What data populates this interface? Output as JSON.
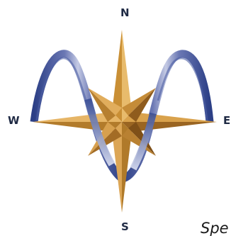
{
  "compass": {
    "north": "N",
    "south": "S",
    "east": "E",
    "west": "W"
  },
  "tagline": "Spe",
  "colors": {
    "gold_light": "#e6b566",
    "gold_mid": "#d39a3e",
    "gold_dark": "#8a5a1c",
    "wave_dark": "#2c3f86",
    "wave_light": "#b8c0de",
    "text": "#1f2a44"
  },
  "icons": [
    "compass-star-icon",
    "sine-wave-icon"
  ]
}
